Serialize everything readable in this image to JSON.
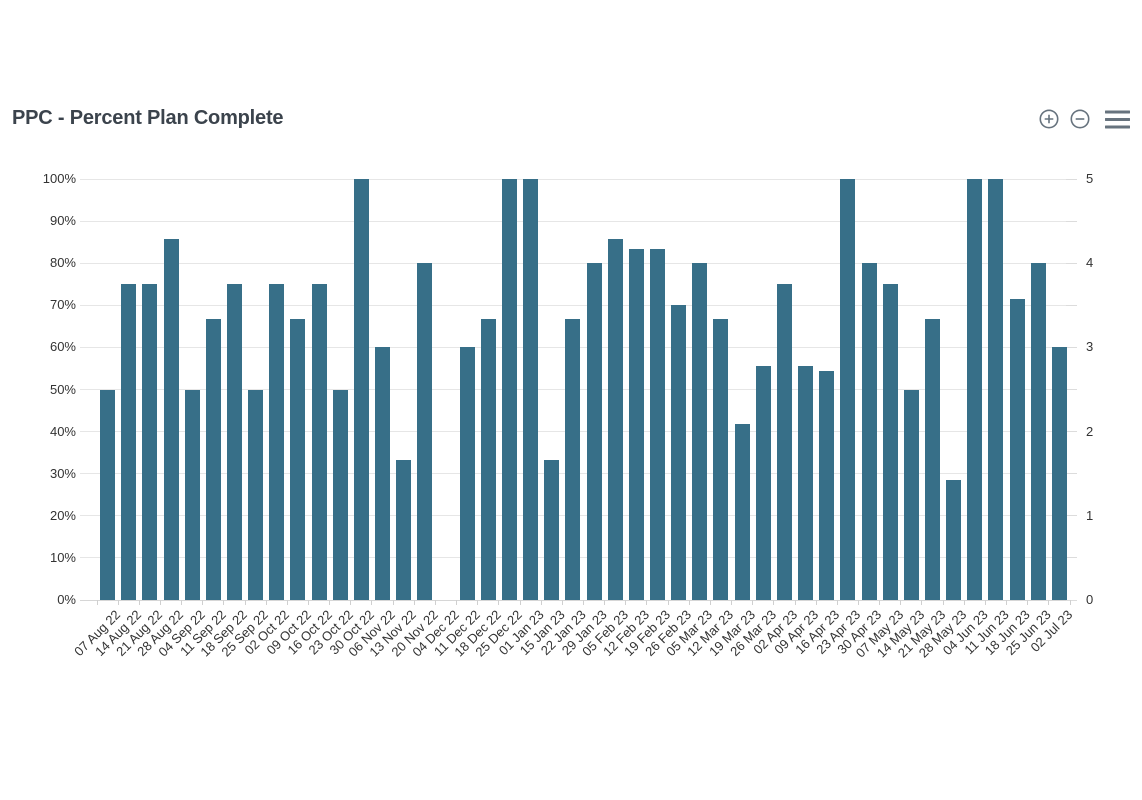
{
  "header": {
    "title": "PPC - Percent Plan Complete",
    "toolbar": {
      "zoom_in_icon": "plus-circle",
      "zoom_out_icon": "minus-circle",
      "menu_icon": "hamburger-menu"
    }
  },
  "colors": {
    "bar": "#376f88",
    "title_text": "#3b434c",
    "axis_text": "#333333",
    "gridline": "#e6e6e6",
    "icon": "#67737e",
    "background": "#ffffff"
  },
  "chart_data": {
    "type": "bar",
    "title": "PPC - Percent Plan Complete",
    "categories": [
      "07 Aug 22",
      "14 Aug 22",
      "21 Aug 22",
      "28 Aug 22",
      "04 Sep 22",
      "11 Sep 22",
      "18 Sep 22",
      "25 Sep 22",
      "02 Oct 22",
      "09 Oct 22",
      "16 Oct 22",
      "23 Oct 22",
      "30 Oct 22",
      "06 Nov 22",
      "13 Nov 22",
      "20 Nov 22",
      "04 Dec 22",
      "11 Dec 22",
      "18 Dec 22",
      "25 Dec 22",
      "01 Jan 23",
      "15 Jan 23",
      "22 Jan 23",
      "29 Jan 23",
      "05 Feb 23",
      "12 Feb 23",
      "19 Feb 23",
      "26 Feb 23",
      "05 Mar 23",
      "12 Mar 23",
      "19 Mar 23",
      "26 Mar 23",
      "02 Apr 23",
      "09 Apr 23",
      "16 Apr 23",
      "23 Apr 23",
      "30 Apr 23",
      "07 May 23",
      "14 May 23",
      "21 May 23",
      "28 May 23",
      "04 Jun 23",
      "11 Jun 23",
      "18 Jun 23",
      "25 Jun 23",
      "02 Jul 23"
    ],
    "values": [
      50,
      75,
      75,
      85.7,
      50,
      66.7,
      75,
      50,
      75,
      66.7,
      75,
      50,
      100,
      60,
      33.3,
      80,
      null,
      60,
      66.7,
      100,
      100,
      33.3,
      66.7,
      80,
      85.7,
      83.3,
      83.3,
      70,
      80,
      66.7,
      41.7,
      55.6,
      75,
      55.6,
      54.5,
      100,
      80,
      75,
      50,
      66.7,
      28.6,
      100,
      100,
      71.4,
      80,
      60
    ],
    "xlabel": "",
    "ylabel": "",
    "left_axis": {
      "tick_labels": [
        "0%",
        "10%",
        "20%",
        "30%",
        "40%",
        "50%",
        "60%",
        "70%",
        "80%",
        "90%",
        "100%"
      ],
      "range": [
        0,
        100
      ]
    },
    "right_axis": {
      "tick_labels": [
        "0",
        "1",
        "2",
        "3",
        "4",
        "5"
      ],
      "range": [
        0,
        5
      ]
    },
    "grid": true,
    "legend": false
  }
}
